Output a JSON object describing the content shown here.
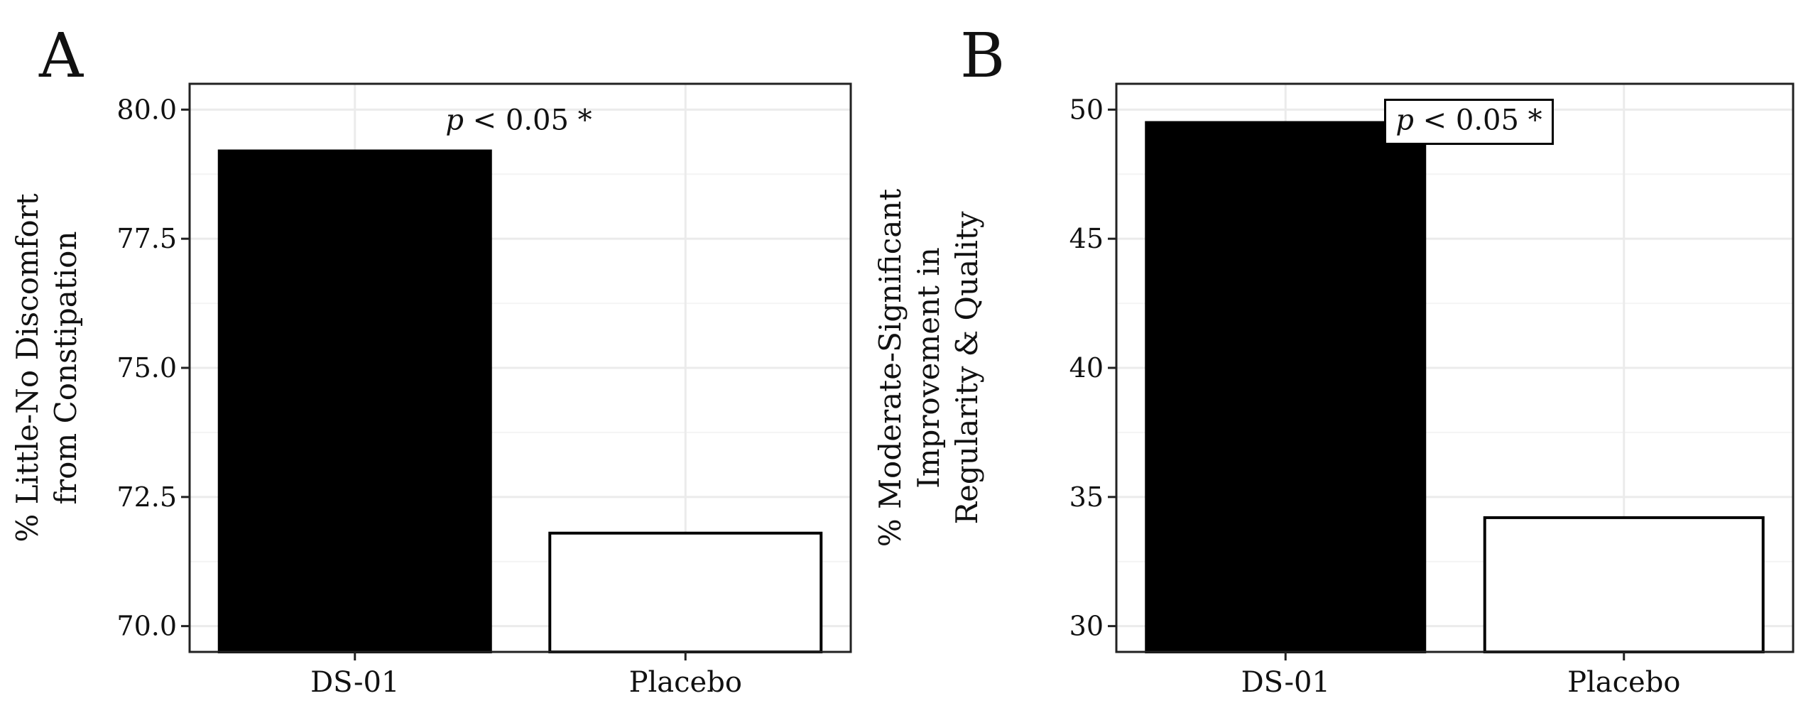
{
  "chart_data": [
    {
      "panel_label": "A",
      "type": "bar",
      "categories": [
        "DS-01",
        "Placebo"
      ],
      "values": [
        79.2,
        71.8
      ],
      "bar_colors": [
        "#000000",
        "#ffffff"
      ],
      "ylabel_lines": [
        "% Little-No Discomfort",
        "from Constipation"
      ],
      "ylim": [
        69.5,
        80.5
      ],
      "yticks": [
        70.0,
        72.5,
        75.0,
        77.5,
        80.0
      ],
      "ytick_labels": [
        "70.0",
        "72.5",
        "75.0",
        "77.5",
        "80.0"
      ],
      "grid": true,
      "annotation": {
        "italic": "p",
        "rest": " < 0.05 *",
        "boxed": false
      }
    },
    {
      "panel_label": "B",
      "type": "bar",
      "categories": [
        "DS-01",
        "Placebo"
      ],
      "values": [
        49.5,
        34.2
      ],
      "bar_colors": [
        "#000000",
        "#ffffff"
      ],
      "ylabel_lines": [
        "% Moderate-Significant",
        "Improvement in",
        "Regularity & Quality"
      ],
      "ylim": [
        29.0,
        51.0
      ],
      "yticks": [
        30,
        35,
        40,
        45,
        50
      ],
      "ytick_labels": [
        "30",
        "35",
        "40",
        "45",
        "50"
      ],
      "grid": true,
      "annotation": {
        "italic": "p",
        "rest": " < 0.05 *",
        "boxed": true
      }
    }
  ]
}
